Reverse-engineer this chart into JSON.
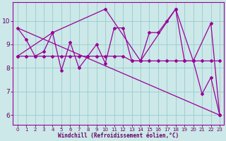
{
  "xlabel": "Windchill (Refroidissement éolien,°C)",
  "background_color": "#cce8e8",
  "line_color": "#990099",
  "grid_color": "#99cccc",
  "x_ticks": [
    0,
    1,
    2,
    3,
    4,
    5,
    6,
    7,
    8,
    9,
    10,
    11,
    12,
    13,
    14,
    15,
    16,
    17,
    18,
    19,
    20,
    21,
    22,
    23
  ],
  "y_ticks": [
    6,
    7,
    8,
    9,
    10
  ],
  "xlim": [
    -0.5,
    23.5
  ],
  "ylim": [
    5.6,
    10.8
  ],
  "line1_x": [
    0,
    1,
    2,
    3,
    4,
    5,
    6,
    7,
    8,
    9,
    10,
    11,
    12,
    13,
    14,
    15,
    16,
    17,
    18,
    19,
    20,
    21,
    22,
    23
  ],
  "line1_y": [
    9.7,
    9.2,
    8.5,
    8.7,
    9.5,
    7.9,
    9.1,
    8.0,
    8.5,
    9.0,
    8.2,
    9.7,
    9.7,
    8.3,
    8.3,
    9.5,
    9.5,
    10.0,
    10.5,
    8.3,
    8.3,
    6.9,
    7.6,
    6.0
  ],
  "line2_x": [
    0,
    1,
    2,
    3,
    4,
    5,
    6,
    7,
    8,
    9,
    10,
    11,
    12,
    13,
    14,
    15,
    16,
    17,
    18,
    19,
    20,
    21,
    22,
    23
  ],
  "line2_y": [
    8.5,
    8.5,
    8.5,
    8.5,
    8.5,
    8.5,
    8.5,
    8.5,
    8.5,
    8.5,
    8.5,
    8.5,
    8.5,
    8.3,
    8.3,
    8.3,
    8.3,
    8.3,
    8.3,
    8.3,
    8.3,
    8.3,
    8.3,
    8.3
  ],
  "line3_x": [
    0,
    4,
    10,
    14,
    18,
    20,
    22,
    23
  ],
  "line3_y": [
    8.5,
    9.5,
    10.5,
    8.3,
    10.5,
    8.3,
    9.9,
    6.0
  ],
  "line4_x": [
    0,
    23
  ],
  "line4_y": [
    9.7,
    6.0
  ],
  "tick_color": "#660066",
  "tick_fontsize": 5.0,
  "ytick_fontsize": 6.5,
  "xlabel_fontsize": 5.5
}
